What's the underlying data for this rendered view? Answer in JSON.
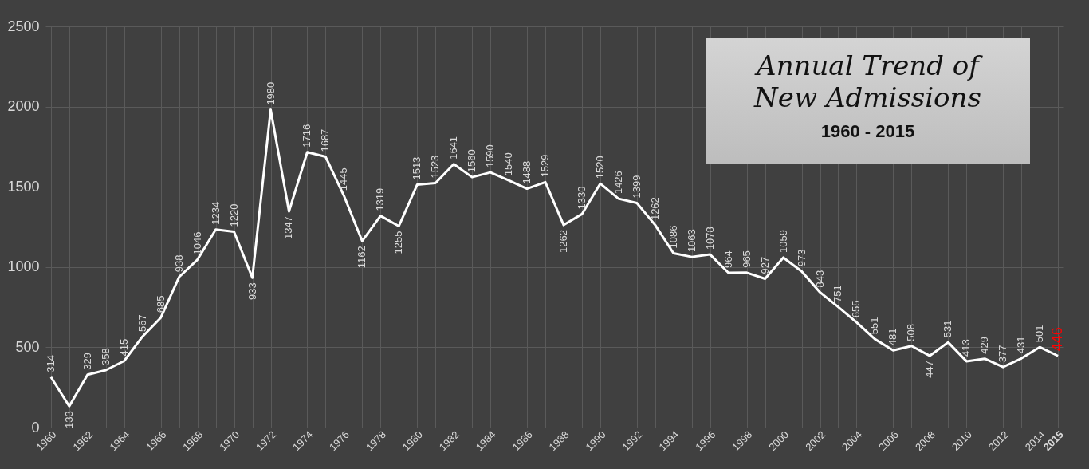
{
  "chart_data": {
    "type": "line",
    "title": "Annual Trend of New Admissions",
    "subtitle": "1960 - 2015",
    "categories": [
      "1960",
      null,
      "1962",
      null,
      "1964",
      null,
      "1966",
      null,
      "1968",
      null,
      "1970",
      null,
      "1972",
      null,
      "1974",
      null,
      "1976",
      null,
      "1978",
      null,
      "1980",
      null,
      "1982",
      null,
      "1984",
      null,
      "1986",
      null,
      "1988",
      null,
      "1990",
      null,
      "1992",
      null,
      "1994",
      null,
      "1996",
      null,
      "1998",
      null,
      "2000",
      null,
      "2002",
      null,
      "2004",
      null,
      "2006",
      null,
      "2008",
      null,
      "2010",
      null,
      "2012",
      null,
      "2014",
      "2015"
    ],
    "series": [
      {
        "color": "#ffffff",
        "values": [
          314,
          133,
          329,
          358,
          415,
          567,
          685,
          938,
          1046,
          1234,
          1220,
          933,
          1980,
          1347,
          1716,
          1687,
          1445,
          1162,
          1319,
          1255,
          1513,
          1523,
          1641,
          1560,
          1590,
          1540,
          1488,
          1529,
          1262,
          1330,
          1520,
          1426,
          1399,
          1262,
          1086,
          1063,
          1078,
          964,
          965,
          927,
          1059,
          973,
          843,
          751,
          655,
          551,
          481,
          508,
          447,
          531,
          413,
          429,
          377,
          431,
          501,
          446
        ]
      }
    ],
    "ylim": [
      0,
      2500
    ],
    "yticks": [
      0,
      500,
      1000,
      1500,
      2000,
      2500
    ],
    "grid": true,
    "data_labels": true,
    "marker": "none",
    "line_style": "solid"
  }
}
